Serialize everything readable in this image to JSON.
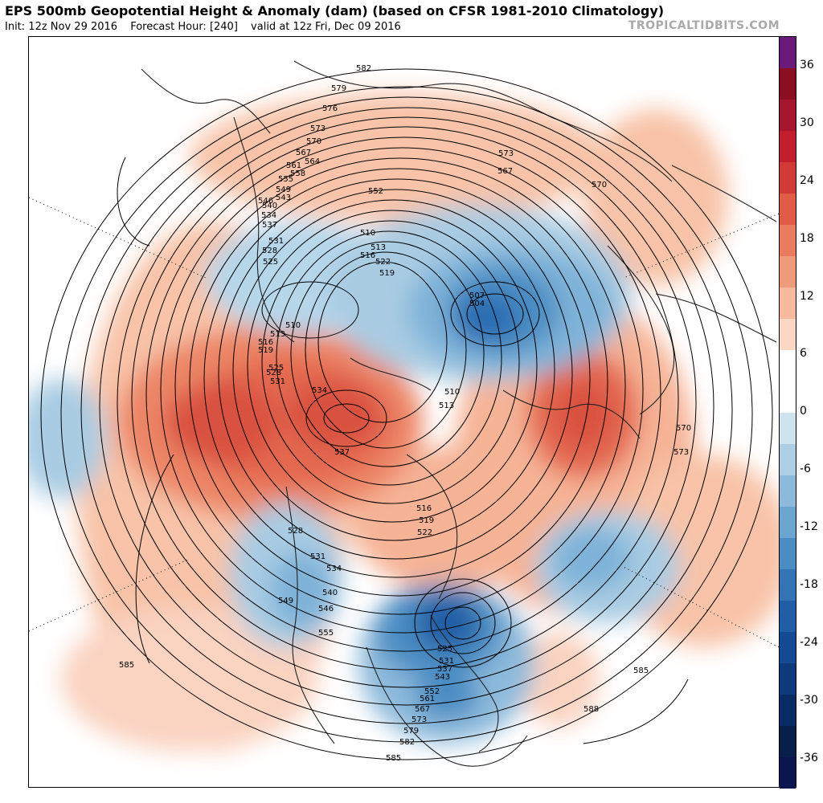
{
  "header": {
    "title": "EPS 500mb Geopotential Height & Anomaly (dam) (based on CFSR 1981-2010 Climatology)",
    "init": "Init: 12z Nov 29 2016",
    "forecast_hour": "Forecast Hour: [240]",
    "valid": "valid at 12z Fri, Dec 09 2016",
    "brand": "TROPICALTIDBITS.COM"
  },
  "colorbar": {
    "ticks": [
      "36",
      "30",
      "24",
      "18",
      "12",
      "6",
      "0",
      "-6",
      "-12",
      "-18",
      "-24",
      "-30",
      "-36"
    ],
    "colors": [
      "#6a1b7a",
      "#8b0e22",
      "#a5152d",
      "#c21e2e",
      "#d23b35",
      "#e05c47",
      "#e97c5f",
      "#f09a7c",
      "#f6b99e",
      "#fbd7c4",
      "#ffffff",
      "#ffffff",
      "#cfe3ef",
      "#aecee5",
      "#8dbadb",
      "#6ca5d0",
      "#4b8dc3",
      "#3474b5",
      "#225ea6",
      "#144a93",
      "#0c3a7b",
      "#082c63",
      "#071f4a",
      "#0b1550"
    ]
  },
  "contour_labels": [
    "582",
    "579",
    "576",
    "573",
    "570",
    "567",
    "564",
    "561",
    "558",
    "555",
    "549",
    "546",
    "543",
    "540",
    "537",
    "534",
    "531",
    "528",
    "525",
    "522",
    "519",
    "516",
    "513",
    "510",
    "507",
    "504",
    "552",
    "573",
    "567",
    "570",
    "585",
    "585",
    "588",
    "585",
    "582",
    "579",
    "573",
    "567",
    "561",
    "552",
    "543",
    "537",
    "531",
    "525",
    "555",
    "546",
    "540",
    "549",
    "534",
    "531",
    "528",
    "537",
    "534",
    "531",
    "528",
    "525",
    "519",
    "516",
    "513",
    "510",
    "516",
    "519",
    "522",
    "510",
    "513",
    "570",
    "573"
  ]
}
